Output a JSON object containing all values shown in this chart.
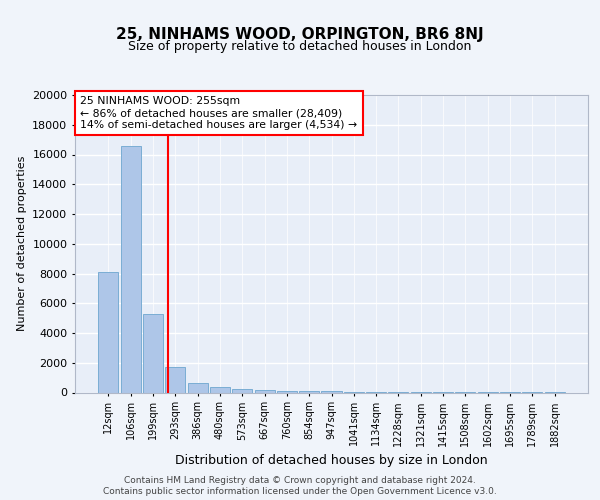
{
  "title1": "25, NINHAMS WOOD, ORPINGTON, BR6 8NJ",
  "title2": "Size of property relative to detached houses in London",
  "xlabel": "Distribution of detached houses by size in London",
  "ylabel": "Number of detached properties",
  "bar_labels": [
    "12sqm",
    "106sqm",
    "199sqm",
    "293sqm",
    "386sqm",
    "480sqm",
    "573sqm",
    "667sqm",
    "760sqm",
    "854sqm",
    "947sqm",
    "1041sqm",
    "1134sqm",
    "1228sqm",
    "1321sqm",
    "1415sqm",
    "1508sqm",
    "1602sqm",
    "1695sqm",
    "1789sqm",
    "1882sqm"
  ],
  "bar_heights": [
    8100,
    16600,
    5300,
    1700,
    650,
    350,
    250,
    150,
    100,
    80,
    70,
    50,
    40,
    30,
    25,
    20,
    15,
    10,
    8,
    5,
    3
  ],
  "bar_color": "#aec6e8",
  "bar_edge_color": "#7aadd4",
  "vline_x": 2.67,
  "vline_color": "red",
  "annotation_text": "25 NINHAMS WOOD: 255sqm\n← 86% of detached houses are smaller (28,409)\n14% of semi-detached houses are larger (4,534) →",
  "annotation_box_color": "white",
  "annotation_box_edge": "red",
  "ylim": [
    0,
    20000
  ],
  "yticks": [
    0,
    2000,
    4000,
    6000,
    8000,
    10000,
    12000,
    14000,
    16000,
    18000,
    20000
  ],
  "footer_line1": "Contains HM Land Registry data © Crown copyright and database right 2024.",
  "footer_line2": "Contains public sector information licensed under the Open Government Licence v3.0.",
  "bg_color": "#f0f4fa",
  "plot_bg_color": "#e8eef8",
  "title1_fontsize": 11,
  "title2_fontsize": 9,
  "ylabel_fontsize": 8,
  "xlabel_fontsize": 9,
  "tick_fontsize": 7,
  "ytick_fontsize": 8,
  "footer_fontsize": 6.5
}
